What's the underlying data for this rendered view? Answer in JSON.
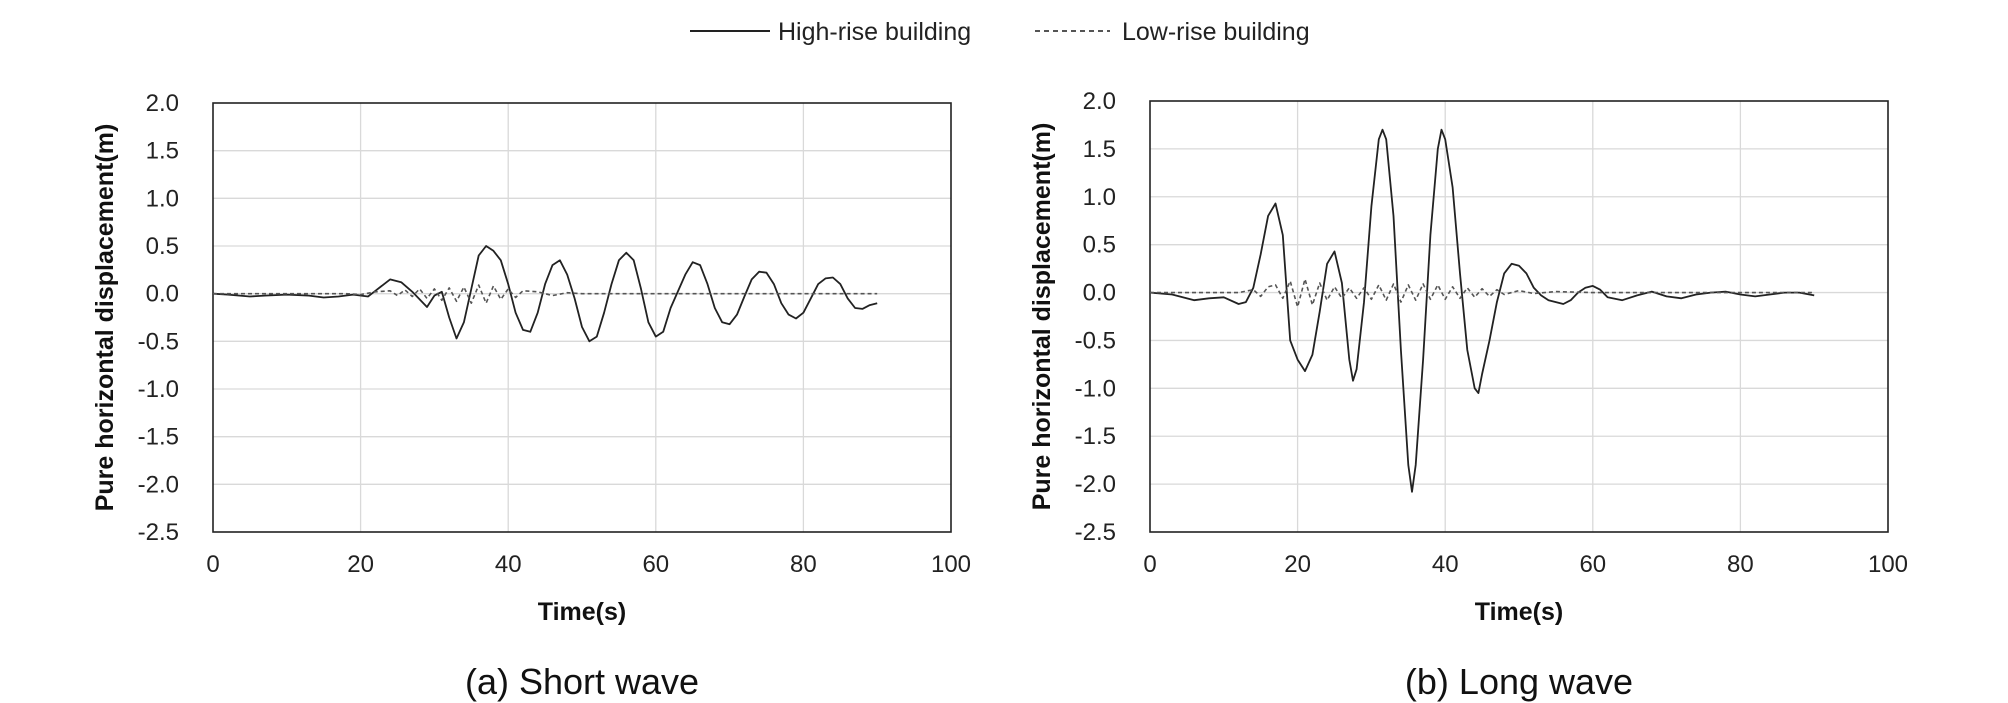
{
  "legend": {
    "items": [
      {
        "label": "High-rise building",
        "style": "solid",
        "color": "#222222"
      },
      {
        "label": "Low-rise building",
        "style": "dashed",
        "color": "#555555"
      }
    ],
    "placement": "top-center"
  },
  "chart_data": [
    {
      "type": "line",
      "caption": "(a) Short wave",
      "xlabel": "Time(s)",
      "ylabel": "Pure horizontal displacement(m)",
      "xlim": [
        0,
        100
      ],
      "ylim": [
        -2.5,
        2.0
      ],
      "xticks": [
        0,
        20,
        40,
        60,
        80,
        100
      ],
      "yticks": [
        2.0,
        1.5,
        1.0,
        0.5,
        0.0,
        -0.5,
        -1.0,
        -1.5,
        -2.0,
        -2.5
      ],
      "ytick_labels": [
        "2.0",
        "1.5",
        "1.0",
        "0.5",
        "0.0",
        "-0.5",
        "-1.0",
        "-1.5",
        "-2.0",
        "-2.5"
      ],
      "grid": true,
      "series": [
        {
          "name": "High-rise building",
          "style": "solid",
          "points": [
            [
              0,
              0
            ],
            [
              2,
              -0.01
            ],
            [
              5,
              -0.03
            ],
            [
              7,
              -0.02
            ],
            [
              10,
              -0.01
            ],
            [
              13,
              -0.02
            ],
            [
              15,
              -0.04
            ],
            [
              17,
              -0.03
            ],
            [
              19,
              -0.01
            ],
            [
              21,
              -0.03
            ],
            [
              22,
              0.03
            ],
            [
              24,
              0.15
            ],
            [
              25.5,
              0.12
            ],
            [
              27,
              0.02
            ],
            [
              29,
              -0.14
            ],
            [
              30,
              -0.02
            ],
            [
              31,
              0.02
            ],
            [
              32,
              -0.25
            ],
            [
              33,
              -0.47
            ],
            [
              34,
              -0.3
            ],
            [
              35,
              0.05
            ],
            [
              36,
              0.4
            ],
            [
              37,
              0.5
            ],
            [
              38,
              0.45
            ],
            [
              39,
              0.35
            ],
            [
              40,
              0.1
            ],
            [
              41,
              -0.2
            ],
            [
              42,
              -0.38
            ],
            [
              43,
              -0.4
            ],
            [
              44,
              -0.2
            ],
            [
              45,
              0.1
            ],
            [
              46,
              0.3
            ],
            [
              47,
              0.35
            ],
            [
              48,
              0.2
            ],
            [
              49,
              -0.05
            ],
            [
              50,
              -0.35
            ],
            [
              51,
              -0.5
            ],
            [
              52,
              -0.45
            ],
            [
              53,
              -0.2
            ],
            [
              54,
              0.1
            ],
            [
              55,
              0.35
            ],
            [
              56,
              0.43
            ],
            [
              57,
              0.35
            ],
            [
              58,
              0.05
            ],
            [
              59,
              -0.3
            ],
            [
              60,
              -0.45
            ],
            [
              61,
              -0.4
            ],
            [
              62,
              -0.15
            ],
            [
              64,
              0.2
            ],
            [
              65,
              0.33
            ],
            [
              66,
              0.3
            ],
            [
              67,
              0.1
            ],
            [
              68,
              -0.15
            ],
            [
              69,
              -0.3
            ],
            [
              70,
              -0.32
            ],
            [
              71,
              -0.22
            ],
            [
              72,
              -0.03
            ],
            [
              73,
              0.15
            ],
            [
              74,
              0.23
            ],
            [
              75,
              0.22
            ],
            [
              76,
              0.1
            ],
            [
              77,
              -0.1
            ],
            [
              78,
              -0.22
            ],
            [
              79,
              -0.26
            ],
            [
              80,
              -0.2
            ],
            [
              81,
              -0.05
            ],
            [
              82,
              0.1
            ],
            [
              83,
              0.16
            ],
            [
              84,
              0.17
            ],
            [
              85,
              0.1
            ],
            [
              86,
              -0.05
            ],
            [
              87,
              -0.15
            ],
            [
              88,
              -0.16
            ],
            [
              89,
              -0.12
            ],
            [
              90,
              -0.1
            ]
          ]
        },
        {
          "name": "Low-rise building",
          "style": "dashed",
          "points": [
            [
              0,
              0
            ],
            [
              18,
              0
            ],
            [
              20,
              -0.01
            ],
            [
              22,
              0.02
            ],
            [
              24,
              0.03
            ],
            [
              25,
              -0.02
            ],
            [
              26,
              0.04
            ],
            [
              27,
              -0.03
            ],
            [
              28,
              0.05
            ],
            [
              29,
              -0.05
            ],
            [
              30,
              0.05
            ],
            [
              31,
              -0.07
            ],
            [
              32,
              0.06
            ],
            [
              33,
              -0.08
            ],
            [
              34,
              0.07
            ],
            [
              35,
              -0.1
            ],
            [
              36,
              0.09
            ],
            [
              37,
              -0.1
            ],
            [
              38,
              0.08
            ],
            [
              39,
              -0.06
            ],
            [
              40,
              0.05
            ],
            [
              41,
              -0.04
            ],
            [
              42,
              0.03
            ],
            [
              44,
              0.02
            ],
            [
              46,
              -0.02
            ],
            [
              48,
              0.01
            ],
            [
              50,
              0
            ],
            [
              90,
              0
            ]
          ]
        }
      ]
    },
    {
      "type": "line",
      "caption": "(b) Long wave",
      "xlabel": "Time(s)",
      "ylabel": "Pure horizontal displacement(m)",
      "xlim": [
        0,
        100
      ],
      "ylim": [
        -2.5,
        2.0
      ],
      "xticks": [
        0,
        20,
        40,
        60,
        80,
        100
      ],
      "yticks": [
        2.0,
        1.5,
        1.0,
        0.5,
        0.0,
        -0.5,
        -1.0,
        -1.5,
        -2.0,
        -2.5
      ],
      "ytick_labels": [
        "2.0",
        "1.5",
        "1.0",
        "0.5",
        "0.0",
        "-0.5",
        "-1.0",
        "-1.5",
        "-2.0",
        "-2.5"
      ],
      "grid": true,
      "series": [
        {
          "name": "High-rise building",
          "style": "solid",
          "points": [
            [
              0,
              0
            ],
            [
              3,
              -0.02
            ],
            [
              6,
              -0.08
            ],
            [
              8,
              -0.06
            ],
            [
              10,
              -0.05
            ],
            [
              12,
              -0.12
            ],
            [
              13,
              -0.1
            ],
            [
              14,
              0.05
            ],
            [
              15,
              0.4
            ],
            [
              16,
              0.8
            ],
            [
              17,
              0.93
            ],
            [
              18,
              0.6
            ],
            [
              19,
              -0.5
            ],
            [
              20,
              -0.7
            ],
            [
              21,
              -0.82
            ],
            [
              22,
              -0.65
            ],
            [
              23,
              -0.2
            ],
            [
              24,
              0.3
            ],
            [
              25,
              0.43
            ],
            [
              26,
              0.1
            ],
            [
              27,
              -0.7
            ],
            [
              27.5,
              -0.92
            ],
            [
              28,
              -0.8
            ],
            [
              29,
              -0.1
            ],
            [
              30,
              0.9
            ],
            [
              31,
              1.6
            ],
            [
              31.5,
              1.7
            ],
            [
              32,
              1.6
            ],
            [
              33,
              0.8
            ],
            [
              34,
              -0.6
            ],
            [
              35,
              -1.8
            ],
            [
              35.5,
              -2.08
            ],
            [
              36,
              -1.8
            ],
            [
              37,
              -0.7
            ],
            [
              38,
              0.6
            ],
            [
              39,
              1.5
            ],
            [
              39.5,
              1.7
            ],
            [
              40,
              1.6
            ],
            [
              41,
              1.1
            ],
            [
              42,
              0.2
            ],
            [
              43,
              -0.6
            ],
            [
              44,
              -1.0
            ],
            [
              44.5,
              -1.05
            ],
            [
              45,
              -0.85
            ],
            [
              46,
              -0.5
            ],
            [
              47,
              -0.1
            ],
            [
              48,
              0.2
            ],
            [
              49,
              0.3
            ],
            [
              50,
              0.28
            ],
            [
              51,
              0.2
            ],
            [
              52,
              0.05
            ],
            [
              53,
              -0.03
            ],
            [
              54,
              -0.08
            ],
            [
              55,
              -0.1
            ],
            [
              56,
              -0.12
            ],
            [
              57,
              -0.08
            ],
            [
              58,
              0
            ],
            [
              59,
              0.05
            ],
            [
              60,
              0.07
            ],
            [
              61,
              0.03
            ],
            [
              62,
              -0.05
            ],
            [
              64,
              -0.08
            ],
            [
              66,
              -0.03
            ],
            [
              68,
              0.01
            ],
            [
              70,
              -0.04
            ],
            [
              72,
              -0.06
            ],
            [
              74,
              -0.02
            ],
            [
              76,
              0
            ],
            [
              78,
              0.01
            ],
            [
              80,
              -0.02
            ],
            [
              82,
              -0.04
            ],
            [
              84,
              -0.02
            ],
            [
              86,
              0
            ],
            [
              88,
              0
            ],
            [
              90,
              -0.03
            ]
          ]
        },
        {
          "name": "Low-rise building",
          "style": "dashed",
          "points": [
            [
              0,
              0
            ],
            [
              12,
              0
            ],
            [
              14,
              0.03
            ],
            [
              15,
              -0.04
            ],
            [
              16,
              0.06
            ],
            [
              17,
              0.08
            ],
            [
              18,
              -0.06
            ],
            [
              19,
              0.12
            ],
            [
              20,
              -0.15
            ],
            [
              21,
              0.14
            ],
            [
              22,
              -0.13
            ],
            [
              23,
              0.1
            ],
            [
              24,
              -0.08
            ],
            [
              25,
              0.06
            ],
            [
              26,
              -0.06
            ],
            [
              27,
              0.05
            ],
            [
              28,
              -0.06
            ],
            [
              29,
              0.05
            ],
            [
              30,
              -0.07
            ],
            [
              31,
              0.08
            ],
            [
              32,
              -0.08
            ],
            [
              33,
              0.09
            ],
            [
              34,
              -0.1
            ],
            [
              35,
              0.08
            ],
            [
              36,
              -0.08
            ],
            [
              37,
              0.09
            ],
            [
              38,
              -0.07
            ],
            [
              39,
              0.08
            ],
            [
              40,
              -0.07
            ],
            [
              41,
              0.06
            ],
            [
              42,
              -0.06
            ],
            [
              43,
              0.05
            ],
            [
              44,
              -0.05
            ],
            [
              45,
              0.04
            ],
            [
              46,
              -0.04
            ],
            [
              47,
              0.03
            ],
            [
              48,
              -0.02
            ],
            [
              50,
              0.02
            ],
            [
              52,
              -0.01
            ],
            [
              55,
              0.01
            ],
            [
              60,
              0
            ],
            [
              90,
              0
            ]
          ]
        }
      ]
    }
  ]
}
